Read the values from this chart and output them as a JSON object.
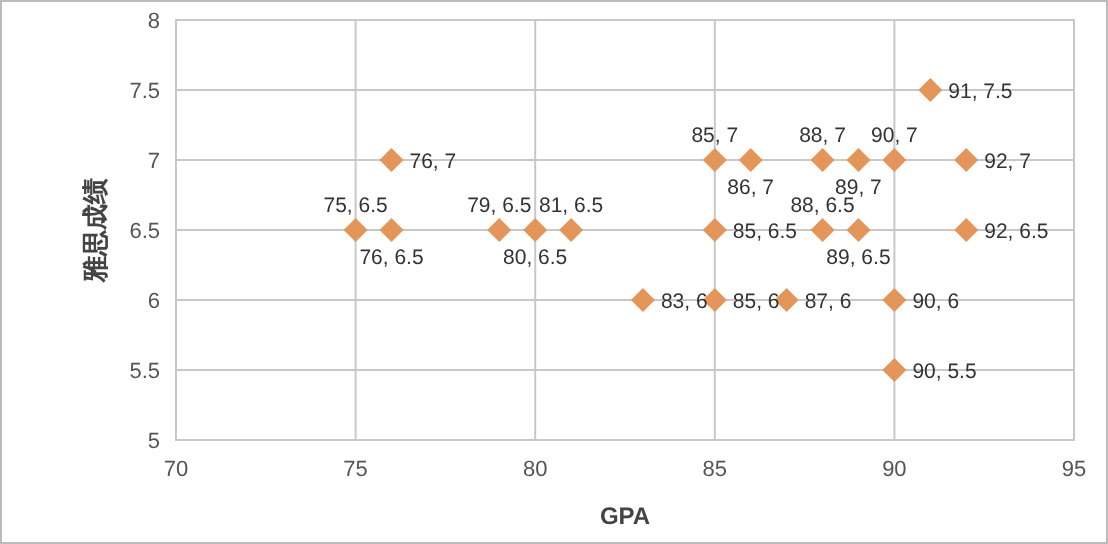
{
  "chart_data": {
    "type": "scatter",
    "xlabel": "GPA",
    "ylabel": "雅思成绩",
    "x": [
      76,
      75,
      76,
      79,
      80,
      81,
      83,
      85,
      86,
      88,
      89,
      90,
      92,
      91,
      85,
      88,
      89,
      92,
      85,
      87,
      90,
      90
    ],
    "values": [
      7,
      6.5,
      6.5,
      6.5,
      6.5,
      6.5,
      6,
      7,
      7,
      7,
      7,
      7,
      7,
      7.5,
      6.5,
      6.5,
      6.5,
      6.5,
      6,
      6,
      6,
      5.5
    ],
    "value_labels": [
      "76, 7",
      "75, 6.5",
      "76, 6.5",
      "79, 6.5",
      "80, 6.5",
      "81, 6.5",
      "83, 6",
      "85, 7",
      "86, 7",
      "88, 7",
      "89, 7",
      "90, 7",
      "92, 7",
      "91, 7.5",
      "85, 6.5",
      "88, 6.5",
      "89, 6.5",
      "92, 6.5",
      "85, 6",
      "87, 6",
      "90, 6",
      "90, 5.5"
    ],
    "color": "#e3955a",
    "marker": "diamond",
    "grid": true,
    "xlim": [
      70,
      95
    ],
    "ylim": [
      5,
      8
    ],
    "xticks": [
      70,
      75,
      80,
      85,
      90,
      95
    ],
    "yticks": [
      5,
      5.5,
      6,
      6.5,
      7,
      7.5,
      8
    ]
  }
}
